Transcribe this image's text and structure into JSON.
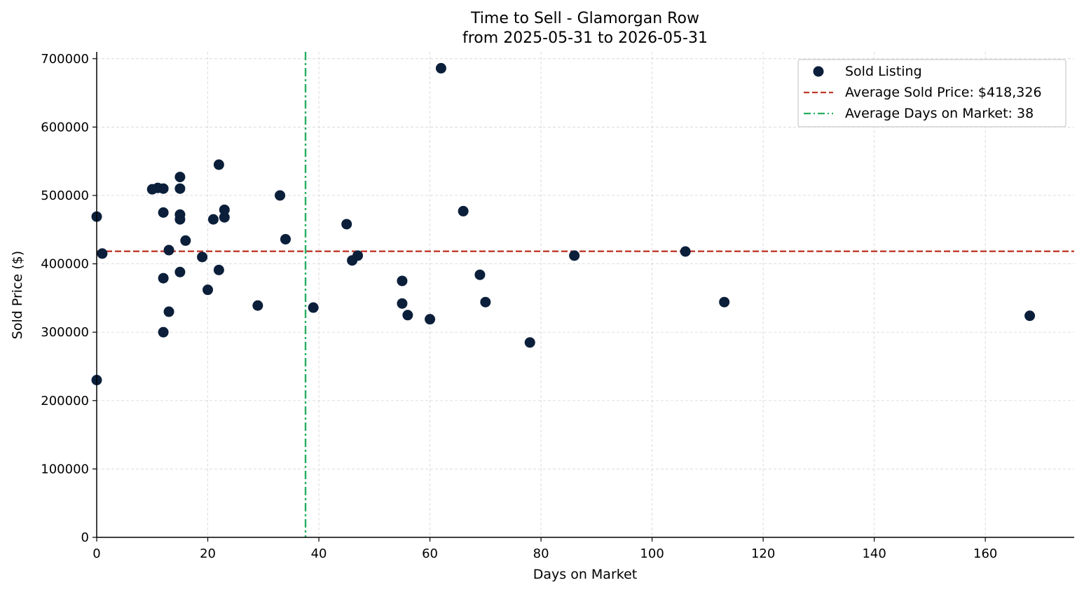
{
  "chart_data": {
    "type": "scatter",
    "title": "Time to Sell - Glamorgan Row",
    "subtitle": "from 2025-05-31 to 2026-05-31",
    "xlabel": "Days on Market",
    "ylabel": "Sold Price ($)",
    "xlim": [
      0,
      176
    ],
    "ylim": [
      0,
      710000
    ],
    "xticks": [
      0,
      20,
      40,
      60,
      80,
      100,
      120,
      140,
      160
    ],
    "yticks": [
      0,
      100000,
      200000,
      300000,
      400000,
      500000,
      600000,
      700000
    ],
    "grid": true,
    "legend_position": "top-right",
    "colors": {
      "points": "#0b1f3a",
      "avg_price_line": "#c0392b",
      "avg_days_line": "#27ae60",
      "grid": "#d9d9d9"
    },
    "series": [
      {
        "name": "Sold Listing",
        "points": [
          {
            "x": 0,
            "y": 469000
          },
          {
            "x": 0,
            "y": 230000
          },
          {
            "x": 1,
            "y": 415000
          },
          {
            "x": 10,
            "y": 509000
          },
          {
            "x": 11,
            "y": 511000
          },
          {
            "x": 12,
            "y": 510000
          },
          {
            "x": 12,
            "y": 475000
          },
          {
            "x": 12,
            "y": 379000
          },
          {
            "x": 12,
            "y": 300000
          },
          {
            "x": 13,
            "y": 420000
          },
          {
            "x": 13,
            "y": 330000
          },
          {
            "x": 15,
            "y": 527000
          },
          {
            "x": 15,
            "y": 510000
          },
          {
            "x": 15,
            "y": 472000
          },
          {
            "x": 15,
            "y": 465000
          },
          {
            "x": 15,
            "y": 388000
          },
          {
            "x": 16,
            "y": 434000
          },
          {
            "x": 19,
            "y": 410000
          },
          {
            "x": 20,
            "y": 362000
          },
          {
            "x": 21,
            "y": 465000
          },
          {
            "x": 22,
            "y": 545000
          },
          {
            "x": 22,
            "y": 391000
          },
          {
            "x": 23,
            "y": 479000
          },
          {
            "x": 23,
            "y": 468000
          },
          {
            "x": 29,
            "y": 339000
          },
          {
            "x": 33,
            "y": 500000
          },
          {
            "x": 34,
            "y": 436000
          },
          {
            "x": 39,
            "y": 336000
          },
          {
            "x": 45,
            "y": 458000
          },
          {
            "x": 46,
            "y": 405000
          },
          {
            "x": 47,
            "y": 412000
          },
          {
            "x": 55,
            "y": 375000
          },
          {
            "x": 55,
            "y": 342000
          },
          {
            "x": 56,
            "y": 325000
          },
          {
            "x": 60,
            "y": 319000
          },
          {
            "x": 62,
            "y": 686000
          },
          {
            "x": 66,
            "y": 477000
          },
          {
            "x": 69,
            "y": 384000
          },
          {
            "x": 70,
            "y": 344000
          },
          {
            "x": 78,
            "y": 285000
          },
          {
            "x": 86,
            "y": 412000
          },
          {
            "x": 106,
            "y": 418000
          },
          {
            "x": 113,
            "y": 344000
          },
          {
            "x": 168,
            "y": 324000
          }
        ]
      }
    ],
    "reference_lines": [
      {
        "name": "Average Sold Price: $418,326",
        "orientation": "horizontal",
        "value": 418326,
        "style": "dashed"
      },
      {
        "name": "Average Days on Market: 38",
        "orientation": "vertical",
        "value": 37.6,
        "style": "dashdot"
      }
    ]
  }
}
